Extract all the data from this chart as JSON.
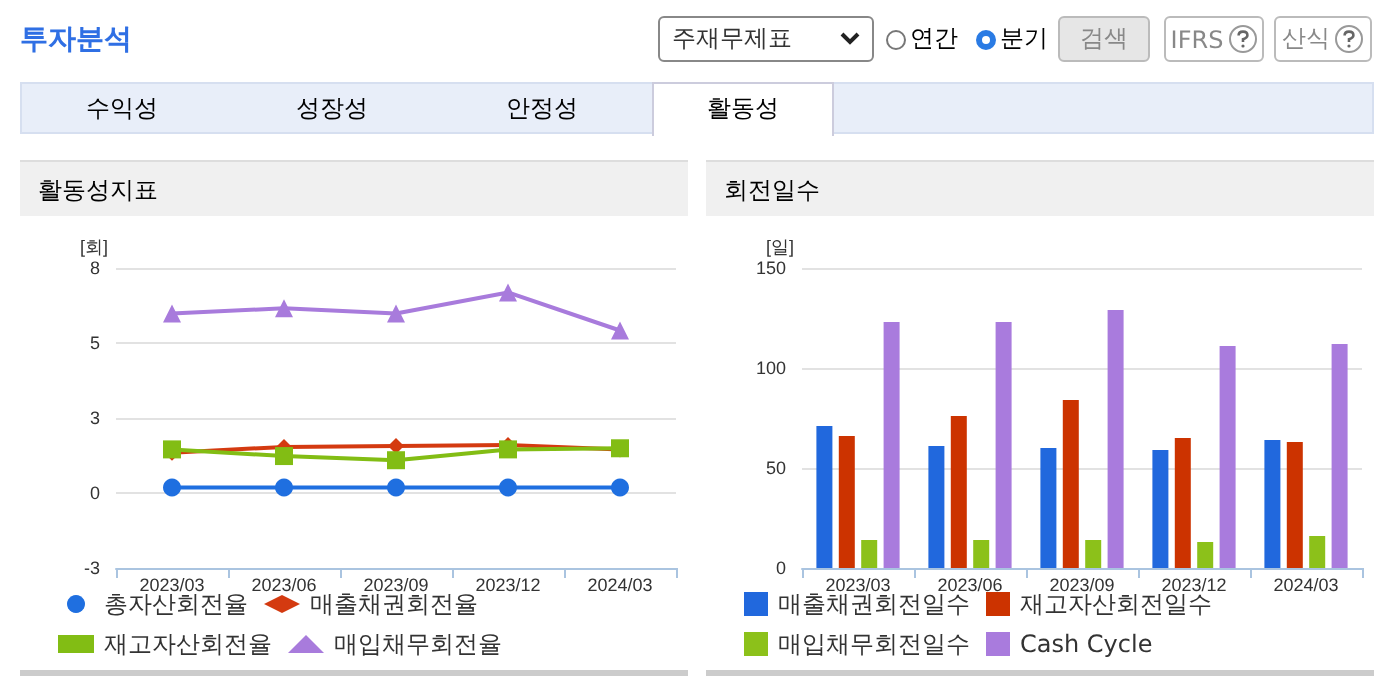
{
  "chart_data": [
    {
      "type": "other",
      "title": "투자분석",
      "annotations": [
        "주재무제표",
        "연간",
        "분기",
        "검색",
        "IFRS",
        "산식",
        "수익성",
        "성장성",
        "안정성",
        "활동성"
      ]
    },
    {
      "type": "line",
      "title": "활동성지표",
      "ylabel": "[회]",
      "categories": [
        "2023/03",
        "2023/06",
        "2023/09",
        "2023/12",
        "2024/03"
      ],
      "series": [
        {
          "name": "총자산회전율",
          "color": "#1f6fe0",
          "marker": "circle",
          "values": [
            0.2,
            0.2,
            0.2,
            0.2,
            0.2
          ]
        },
        {
          "name": "매출채권회전율",
          "color": "#d43a10",
          "marker": "diamond",
          "values": [
            1.45,
            1.66,
            1.69,
            1.73,
            1.57
          ]
        },
        {
          "name": "재고자산회전율",
          "color": "#82bd14",
          "marker": "square",
          "values": [
            1.57,
            1.33,
            1.18,
            1.57,
            1.61
          ]
        },
        {
          "name": "매입채무회전율",
          "color": "#a87bdc",
          "marker": "triangle",
          "values": [
            6.46,
            6.65,
            6.46,
            7.22,
            5.85
          ]
        }
      ],
      "ylim": [
        -2.7,
        8.1
      ],
      "yticks": [
        {
          "value": -2.7,
          "label": "-3"
        },
        {
          "value": 0,
          "label": "0"
        },
        {
          "value": 2.7,
          "label": "3"
        },
        {
          "value": 5.4,
          "label": "5"
        },
        {
          "value": 8.1,
          "label": "8"
        }
      ],
      "grid": "y",
      "legend": "bottom"
    },
    {
      "type": "bar",
      "title": "회전일수",
      "ylabel": "[일]",
      "categories": [
        "2023/03",
        "2023/06",
        "2023/09",
        "2023/12",
        "2024/03"
      ],
      "series": [
        {
          "name": "매출채권회전일수",
          "color": "#2168dd",
          "values": [
            71,
            61,
            60,
            59,
            64
          ]
        },
        {
          "name": "재고자산회전일수",
          "color": "#cc3300",
          "values": [
            66,
            76,
            84,
            65,
            63
          ]
        },
        {
          "name": "매입채무회전일수",
          "color": "#8cc11a",
          "values": [
            14,
            14,
            14,
            13,
            16
          ]
        },
        {
          "name": "Cash Cycle",
          "color": "#a97bdd",
          "values": [
            123,
            123,
            129,
            111,
            112
          ]
        }
      ],
      "ylim": [
        0,
        150
      ],
      "yticks": [
        0,
        50,
        100,
        150
      ],
      "grid": "y",
      "legend": "bottom"
    }
  ]
}
